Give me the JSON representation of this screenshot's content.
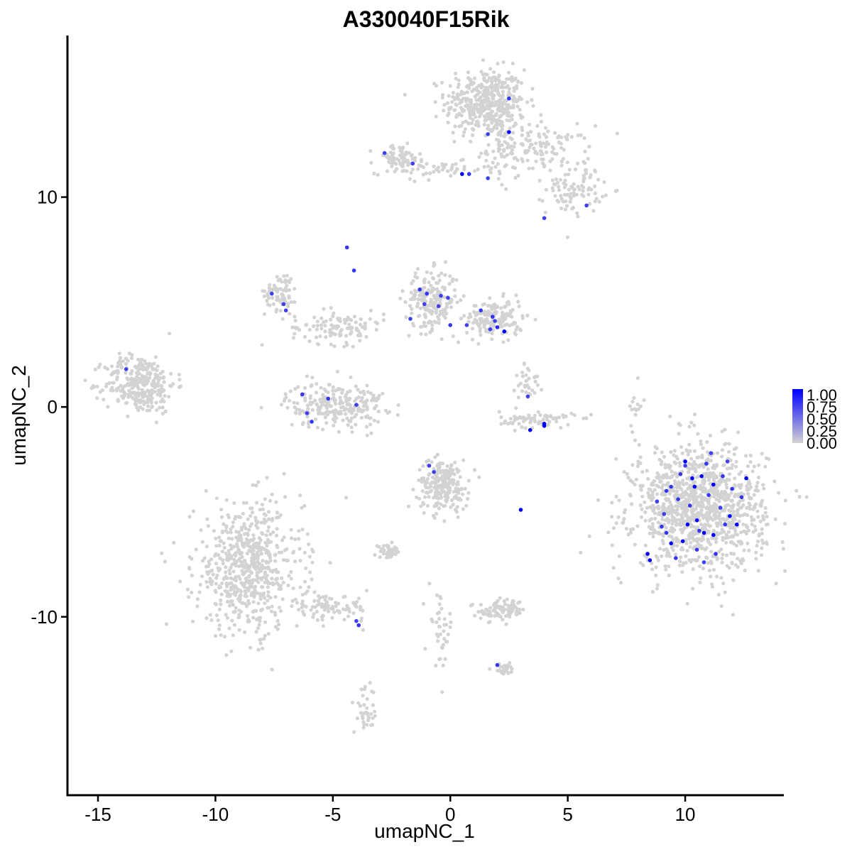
{
  "chart_data": {
    "type": "scatter",
    "title": "A330040F15Rik",
    "xlabel": "umapNC_1",
    "ylabel": "umapNC_2",
    "xlim": [
      -16.3,
      14.2
    ],
    "ylim": [
      -18.5,
      17.7
    ],
    "x_ticks": [
      -15,
      -10,
      -5,
      0,
      5,
      10
    ],
    "x_tick_labels": [
      "-15",
      "-10",
      "-5",
      "0",
      "5",
      "10"
    ],
    "y_ticks": [
      -10,
      0,
      10
    ],
    "y_tick_labels": [
      "-10",
      "0",
      "10"
    ],
    "grid": false,
    "color_scale": {
      "low": "#d3d3d3",
      "high": "#0000ff",
      "min": 0,
      "max": 1,
      "legend_labels": [
        "1.00",
        "0.75",
        "0.50",
        "0.25",
        "0.00"
      ],
      "legend_placement": "right"
    },
    "clusters": [
      {
        "cx": 1.5,
        "cy": 14.5,
        "sx": 0.85,
        "sy": 0.8,
        "n": 420
      },
      {
        "cx": 3.8,
        "cy": 12.3,
        "sx": 1.1,
        "sy": 0.55,
        "n": 130
      },
      {
        "cx": 5.3,
        "cy": 10.4,
        "sx": 0.6,
        "sy": 0.6,
        "n": 90
      },
      {
        "cx": 2.1,
        "cy": 12.3,
        "sx": 0.25,
        "sy": 1.0,
        "n": 45
      },
      {
        "cx": -2.2,
        "cy": 11.8,
        "sx": 0.5,
        "sy": 0.35,
        "n": 80
      },
      {
        "cx": -0.3,
        "cy": 11.3,
        "sx": 0.9,
        "sy": 0.2,
        "n": 40
      },
      {
        "cx": -13.2,
        "cy": 1.1,
        "sx": 0.75,
        "sy": 0.7,
        "n": 300
      },
      {
        "cx": -7.2,
        "cy": 5.5,
        "sx": 0.35,
        "sy": 0.45,
        "n": 70
      },
      {
        "cx": -4.8,
        "cy": 3.8,
        "sx": 1.0,
        "sy": 0.4,
        "n": 110
      },
      {
        "cx": -0.8,
        "cy": 5.1,
        "sx": 0.55,
        "sy": 0.7,
        "n": 200
      },
      {
        "cx": 1.9,
        "cy": 4.2,
        "sx": 0.6,
        "sy": 0.45,
        "n": 160
      },
      {
        "cx": -4.9,
        "cy": 0.1,
        "sx": 1.05,
        "sy": 0.55,
        "n": 240
      },
      {
        "cx": 3.7,
        "cy": -0.6,
        "sx": 0.8,
        "sy": 0.2,
        "n": 70
      },
      {
        "cx": 3.3,
        "cy": 1.2,
        "sx": 0.25,
        "sy": 0.5,
        "n": 30
      },
      {
        "cx": -0.3,
        "cy": -3.7,
        "sx": 0.55,
        "sy": 0.6,
        "n": 230
      },
      {
        "cx": -8.6,
        "cy": -7.7,
        "sx": 1.15,
        "sy": 1.55,
        "n": 620
      },
      {
        "cx": -5.2,
        "cy": -9.6,
        "sx": 0.9,
        "sy": 0.3,
        "n": 90
      },
      {
        "cx": -3.6,
        "cy": -14.5,
        "sx": 0.25,
        "sy": 0.55,
        "n": 35
      },
      {
        "cx": -2.6,
        "cy": -6.9,
        "sx": 0.3,
        "sy": 0.15,
        "n": 40
      },
      {
        "cx": 2.2,
        "cy": -9.7,
        "sx": 0.5,
        "sy": 0.25,
        "n": 90
      },
      {
        "cx": -0.4,
        "cy": -10.5,
        "sx": 0.25,
        "sy": 0.9,
        "n": 40
      },
      {
        "cx": 2.3,
        "cy": -12.5,
        "sx": 0.25,
        "sy": 0.12,
        "n": 25
      },
      {
        "cx": 10.6,
        "cy": -4.8,
        "sx": 1.4,
        "sy": 1.45,
        "n": 1150
      },
      {
        "cx": 7.9,
        "cy": 0.2,
        "sx": 0.15,
        "sy": 0.7,
        "n": 15
      }
    ],
    "expressing_points": [
      {
        "x": 0.5,
        "y": 11.1,
        "v": 1.0
      },
      {
        "x": 2.5,
        "y": 13.1,
        "v": 1.0
      },
      {
        "x": 2.5,
        "y": 14.7,
        "v": 0.75
      },
      {
        "x": 1.6,
        "y": 13.0,
        "v": 0.7
      },
      {
        "x": 0.8,
        "y": 11.1,
        "v": 0.75
      },
      {
        "x": 1.6,
        "y": 10.9,
        "v": 0.7
      },
      {
        "x": -2.8,
        "y": 12.1,
        "v": 0.7
      },
      {
        "x": -1.6,
        "y": 11.6,
        "v": 0.7
      },
      {
        "x": 5.8,
        "y": 9.6,
        "v": 0.7
      },
      {
        "x": 4.0,
        "y": 9.0,
        "v": 0.7
      },
      {
        "x": -4.4,
        "y": 7.6,
        "v": 0.75
      },
      {
        "x": -4.1,
        "y": 6.5,
        "v": 0.75
      },
      {
        "x": -7.6,
        "y": 5.4,
        "v": 0.7
      },
      {
        "x": -7.1,
        "y": 4.9,
        "v": 0.7
      },
      {
        "x": -7.0,
        "y": 4.6,
        "v": 0.7
      },
      {
        "x": -1.3,
        "y": 5.6,
        "v": 0.75
      },
      {
        "x": -1.0,
        "y": 5.4,
        "v": 0.75
      },
      {
        "x": -0.4,
        "y": 5.3,
        "v": 0.7
      },
      {
        "x": -0.1,
        "y": 5.2,
        "v": 0.7
      },
      {
        "x": -1.1,
        "y": 4.9,
        "v": 0.7
      },
      {
        "x": -0.5,
        "y": 4.8,
        "v": 0.7
      },
      {
        "x": -1.7,
        "y": 4.2,
        "v": 0.7
      },
      {
        "x": 0.0,
        "y": 3.9,
        "v": 0.75
      },
      {
        "x": 0.7,
        "y": 3.9,
        "v": 0.7
      },
      {
        "x": 1.3,
        "y": 4.6,
        "v": 0.75
      },
      {
        "x": 1.8,
        "y": 4.3,
        "v": 0.75
      },
      {
        "x": 1.9,
        "y": 4.1,
        "v": 0.7
      },
      {
        "x": 2.0,
        "y": 3.8,
        "v": 0.8
      },
      {
        "x": 2.3,
        "y": 3.6,
        "v": 1.0
      },
      {
        "x": 1.7,
        "y": 3.7,
        "v": 0.7
      },
      {
        "x": -13.8,
        "y": 1.8,
        "v": 0.7
      },
      {
        "x": -6.3,
        "y": 0.6,
        "v": 0.75
      },
      {
        "x": -5.2,
        "y": 0.4,
        "v": 0.75
      },
      {
        "x": -6.1,
        "y": -0.3,
        "v": 0.7
      },
      {
        "x": -5.9,
        "y": -0.7,
        "v": 0.75
      },
      {
        "x": -4.0,
        "y": 0.1,
        "v": 0.7
      },
      {
        "x": 3.3,
        "y": 0.5,
        "v": 0.7
      },
      {
        "x": 3.4,
        "y": -1.1,
        "v": 1.0
      },
      {
        "x": 4.0,
        "y": -0.8,
        "v": 1.0
      },
      {
        "x": 4.0,
        "y": -0.9,
        "v": 1.0
      },
      {
        "x": -0.9,
        "y": -2.8,
        "v": 0.7
      },
      {
        "x": -0.7,
        "y": -3.1,
        "v": 0.7
      },
      {
        "x": 3.0,
        "y": -4.9,
        "v": 1.0
      },
      {
        "x": -3.9,
        "y": -10.4,
        "v": 0.75
      },
      {
        "x": -4.0,
        "y": -10.2,
        "v": 0.7
      },
      {
        "x": 2.0,
        "y": -12.3,
        "v": 0.75
      },
      {
        "x": 8.4,
        "y": -7.0,
        "v": 1.0
      },
      {
        "x": 8.5,
        "y": -7.3,
        "v": 1.0
      },
      {
        "x": 9.0,
        "y": -5.7,
        "v": 0.75
      },
      {
        "x": 9.2,
        "y": -6.0,
        "v": 0.75
      },
      {
        "x": 9.4,
        "y": -6.5,
        "v": 1.0
      },
      {
        "x": 9.1,
        "y": -5.1,
        "v": 0.7
      },
      {
        "x": 8.8,
        "y": -4.5,
        "v": 0.7
      },
      {
        "x": 9.4,
        "y": -3.8,
        "v": 0.75
      },
      {
        "x": 9.8,
        "y": -3.2,
        "v": 0.75
      },
      {
        "x": 10.0,
        "y": -2.8,
        "v": 0.7
      },
      {
        "x": 10.3,
        "y": -3.4,
        "v": 1.0
      },
      {
        "x": 10.7,
        "y": -3.3,
        "v": 1.0
      },
      {
        "x": 11.2,
        "y": -3.7,
        "v": 1.0
      },
      {
        "x": 11.6,
        "y": -3.3,
        "v": 0.75
      },
      {
        "x": 12.6,
        "y": -3.4,
        "v": 1.0
      },
      {
        "x": 12.0,
        "y": -3.9,
        "v": 0.75
      },
      {
        "x": 11.9,
        "y": -5.2,
        "v": 1.0
      },
      {
        "x": 11.7,
        "y": -5.6,
        "v": 0.75
      },
      {
        "x": 11.2,
        "y": -6.1,
        "v": 1.0
      },
      {
        "x": 10.8,
        "y": -6.0,
        "v": 1.0
      },
      {
        "x": 10.5,
        "y": -5.4,
        "v": 1.0
      },
      {
        "x": 10.1,
        "y": -5.6,
        "v": 1.0
      },
      {
        "x": 9.9,
        "y": -6.4,
        "v": 1.0
      },
      {
        "x": 10.5,
        "y": -6.8,
        "v": 0.75
      },
      {
        "x": 10.4,
        "y": -3.8,
        "v": 1.0
      },
      {
        "x": 11.0,
        "y": -4.2,
        "v": 0.75
      },
      {
        "x": 10.9,
        "y": -2.7,
        "v": 0.75
      },
      {
        "x": 11.1,
        "y": -2.2,
        "v": 0.7
      },
      {
        "x": 10.0,
        "y": -2.6,
        "v": 1.0
      },
      {
        "x": 9.7,
        "y": -4.4,
        "v": 0.75
      },
      {
        "x": 10.2,
        "y": -4.7,
        "v": 0.75
      },
      {
        "x": 11.5,
        "y": -4.8,
        "v": 0.7
      },
      {
        "x": 12.2,
        "y": -5.6,
        "v": 1.0
      },
      {
        "x": 11.3,
        "y": -7.0,
        "v": 0.75
      },
      {
        "x": 10.8,
        "y": -7.4,
        "v": 0.7
      },
      {
        "x": 9.6,
        "y": -7.2,
        "v": 0.75
      },
      {
        "x": 12.4,
        "y": -4.3,
        "v": 0.75
      },
      {
        "x": 9.2,
        "y": -4.0,
        "v": 0.75
      },
      {
        "x": 11.8,
        "y": -2.6,
        "v": 0.7
      },
      {
        "x": 10.6,
        "y": -5.9,
        "v": 0.75
      }
    ]
  }
}
